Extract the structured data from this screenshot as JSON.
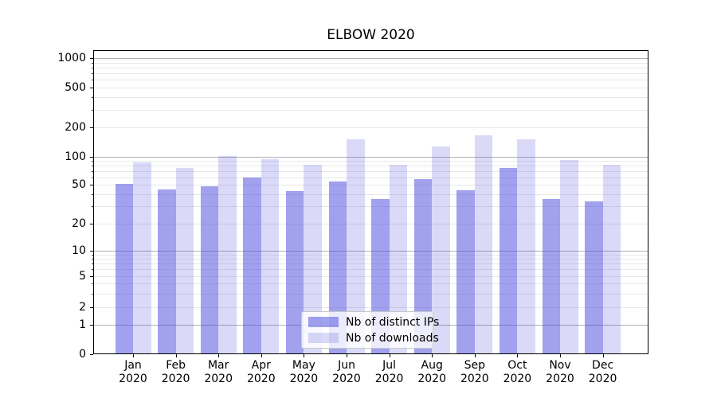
{
  "title": "ELBOW 2020",
  "legend": {
    "items": [
      {
        "label": "Nb of distinct IPs",
        "color": "rgba(68,68,221,0.5)"
      },
      {
        "label": "Nb of downloads",
        "color": "rgba(68,68,221,0.2)"
      }
    ]
  },
  "colors": {
    "bar_base": "#4444dd",
    "series_fill": [
      "rgba(68,68,221,0.5)",
      "rgba(68,68,221,0.2)"
    ],
    "grid_major": "#b0b0b0",
    "grid_minor": "#e8e8e8",
    "spine": "#000000",
    "background": "#ffffff",
    "legend_border": "#c8c8c8"
  },
  "chart_data": {
    "type": "bar",
    "title": "ELBOW 2020",
    "categories": [
      "Jan 2020",
      "Feb 2020",
      "Mar 2020",
      "Apr 2020",
      "May 2020",
      "Jun 2020",
      "Jul 2020",
      "Aug 2020",
      "Sep 2020",
      "Oct 2020",
      "Nov 2020",
      "Dec 2020"
    ],
    "series": [
      {
        "name": "Nb of distinct IPs",
        "values": [
          51,
          45,
          48,
          60,
          43,
          54,
          36,
          57,
          44,
          75,
          36,
          34
        ]
      },
      {
        "name": "Nb of downloads",
        "values": [
          86,
          75,
          101,
          94,
          81,
          152,
          82,
          126,
          165,
          152,
          92,
          81
        ]
      }
    ],
    "xlabel": "",
    "ylabel": "",
    "yscale": "symlog",
    "yticks": [
      0,
      1,
      2,
      5,
      10,
      20,
      50,
      100,
      200,
      500,
      1000
    ],
    "ylim": [
      0,
      1200
    ],
    "grid": "both",
    "legend_position": "inside lower-center"
  }
}
